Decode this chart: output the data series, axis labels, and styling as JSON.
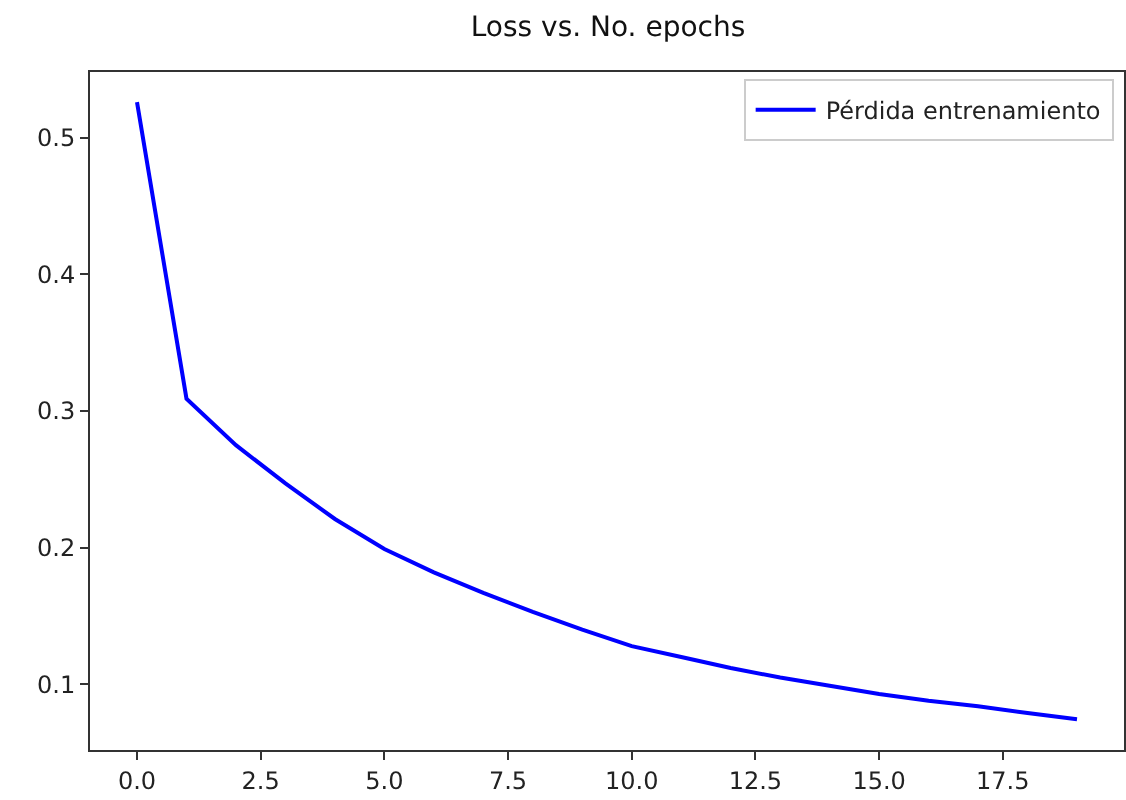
{
  "chart_data": {
    "type": "line",
    "title": "Loss vs. No. epochs",
    "x": [
      0,
      1,
      2,
      3,
      4,
      5,
      6,
      7,
      8,
      9,
      10,
      11,
      12,
      13,
      14,
      15,
      16,
      17,
      18,
      19
    ],
    "series": [
      {
        "name": "Pérdida entrenamiento",
        "color": "#0000ff",
        "values": [
          0.526,
          0.309,
          0.275,
          0.247,
          0.221,
          0.199,
          0.182,
          0.167,
          0.153,
          0.14,
          0.128,
          0.12,
          0.112,
          0.105,
          0.099,
          0.093,
          0.088,
          0.084,
          0.079,
          0.0745
        ]
      }
    ],
    "xlim": [
      -0.95,
      19.95
    ],
    "xticks": [
      {
        "value": 0,
        "label": "0.0"
      },
      {
        "value": 2.5,
        "label": "2.5"
      },
      {
        "value": 5,
        "label": "5.0"
      },
      {
        "value": 7.5,
        "label": "7.5"
      },
      {
        "value": 10,
        "label": "10.0"
      },
      {
        "value": 12.5,
        "label": "12.5"
      },
      {
        "value": 15,
        "label": "15.0"
      },
      {
        "value": 17.5,
        "label": "17.5"
      }
    ],
    "ylim": [
      0.052,
      0.548
    ],
    "yticks": [
      0.1,
      0.2,
      0.3,
      0.4,
      0.5
    ],
    "grid": false,
    "legend": "top right",
    "marker": "none",
    "line_style": "solid"
  }
}
